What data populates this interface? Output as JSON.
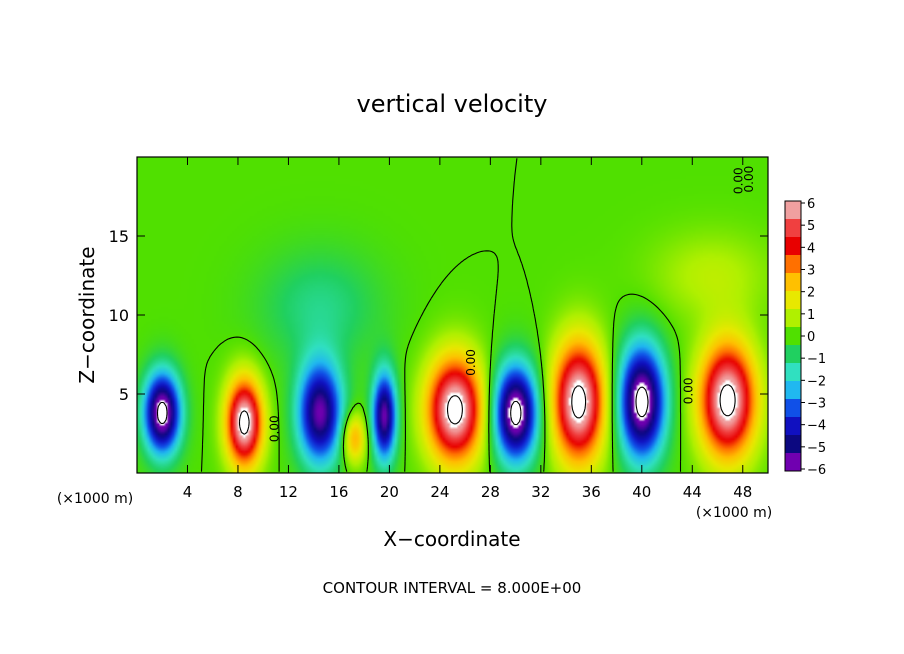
{
  "chart_data": {
    "type": "heatmap",
    "title": "vertical velocity",
    "xlabel": "X−coordinate",
    "ylabel": "Z−coordinate",
    "x_unit": "(×1000 m)",
    "y_unit": "(×1000 m)",
    "footer": "CONTOUR INTERVAL = 8.000E+00",
    "xlim": [
      0,
      50
    ],
    "ylim": [
      0,
      20
    ],
    "x_ticks": [
      4,
      8,
      12,
      16,
      20,
      24,
      28,
      32,
      36,
      40,
      44,
      48
    ],
    "y_ticks": [
      5,
      10,
      15
    ],
    "colorbar": {
      "min": -6,
      "max": 6,
      "ticks": [
        6,
        5,
        4,
        3,
        2,
        1,
        0,
        -1,
        -2,
        -3,
        -4,
        -5,
        -6
      ],
      "tick_labels": [
        "6",
        "5",
        "4",
        "3",
        "2",
        "1",
        "0",
        "−1",
        "−2",
        "−3",
        "−4",
        "−5",
        "−6"
      ],
      "colors": [
        "#f0a0a0",
        "#f04040",
        "#e80000",
        "#ff7000",
        "#ffc000",
        "#e8e800",
        "#b0f000",
        "#50e000",
        "#20d060",
        "#30e0c0",
        "#20b8f0",
        "#1050e8",
        "#1010c0",
        "#0c0880",
        "#7000b0"
      ]
    },
    "contour_labels": [
      "0.00",
      "0.00",
      "0.00",
      "0.00",
      "0.00"
    ],
    "cells": [
      {
        "x": 2,
        "z": 3.8,
        "w": 1.8,
        "h": 3.2,
        "v": -7
      },
      {
        "x": 8.5,
        "z": 3.2,
        "w": 1.8,
        "h": 3.5,
        "v": 7
      },
      {
        "x": 14.5,
        "z": 3.8,
        "w": 2.2,
        "h": 4.0,
        "v": -6
      },
      {
        "x": 17.2,
        "z": 2.2,
        "w": 1.2,
        "h": 2.0,
        "v": 3
      },
      {
        "x": 19.6,
        "z": 3.6,
        "w": 1.2,
        "h": 3.5,
        "v": -6
      },
      {
        "x": 25.2,
        "z": 4.0,
        "w": 2.8,
        "h": 4.2,
        "v": 7
      },
      {
        "x": 30.0,
        "z": 3.8,
        "w": 2.2,
        "h": 3.8,
        "v": -7
      },
      {
        "x": 35.0,
        "z": 4.5,
        "w": 2.6,
        "h": 4.8,
        "v": 7
      },
      {
        "x": 40.0,
        "z": 4.5,
        "w": 2.3,
        "h": 4.5,
        "v": -7
      },
      {
        "x": 46.8,
        "z": 4.6,
        "w": 2.8,
        "h": 4.6,
        "v": 7
      },
      {
        "x": 14.5,
        "z": 10.5,
        "w": 6.0,
        "h": 4.5,
        "v": -1.2
      },
      {
        "x": 45.5,
        "z": 12.5,
        "w": 6.0,
        "h": 3.5,
        "v": 1.0
      }
    ]
  }
}
